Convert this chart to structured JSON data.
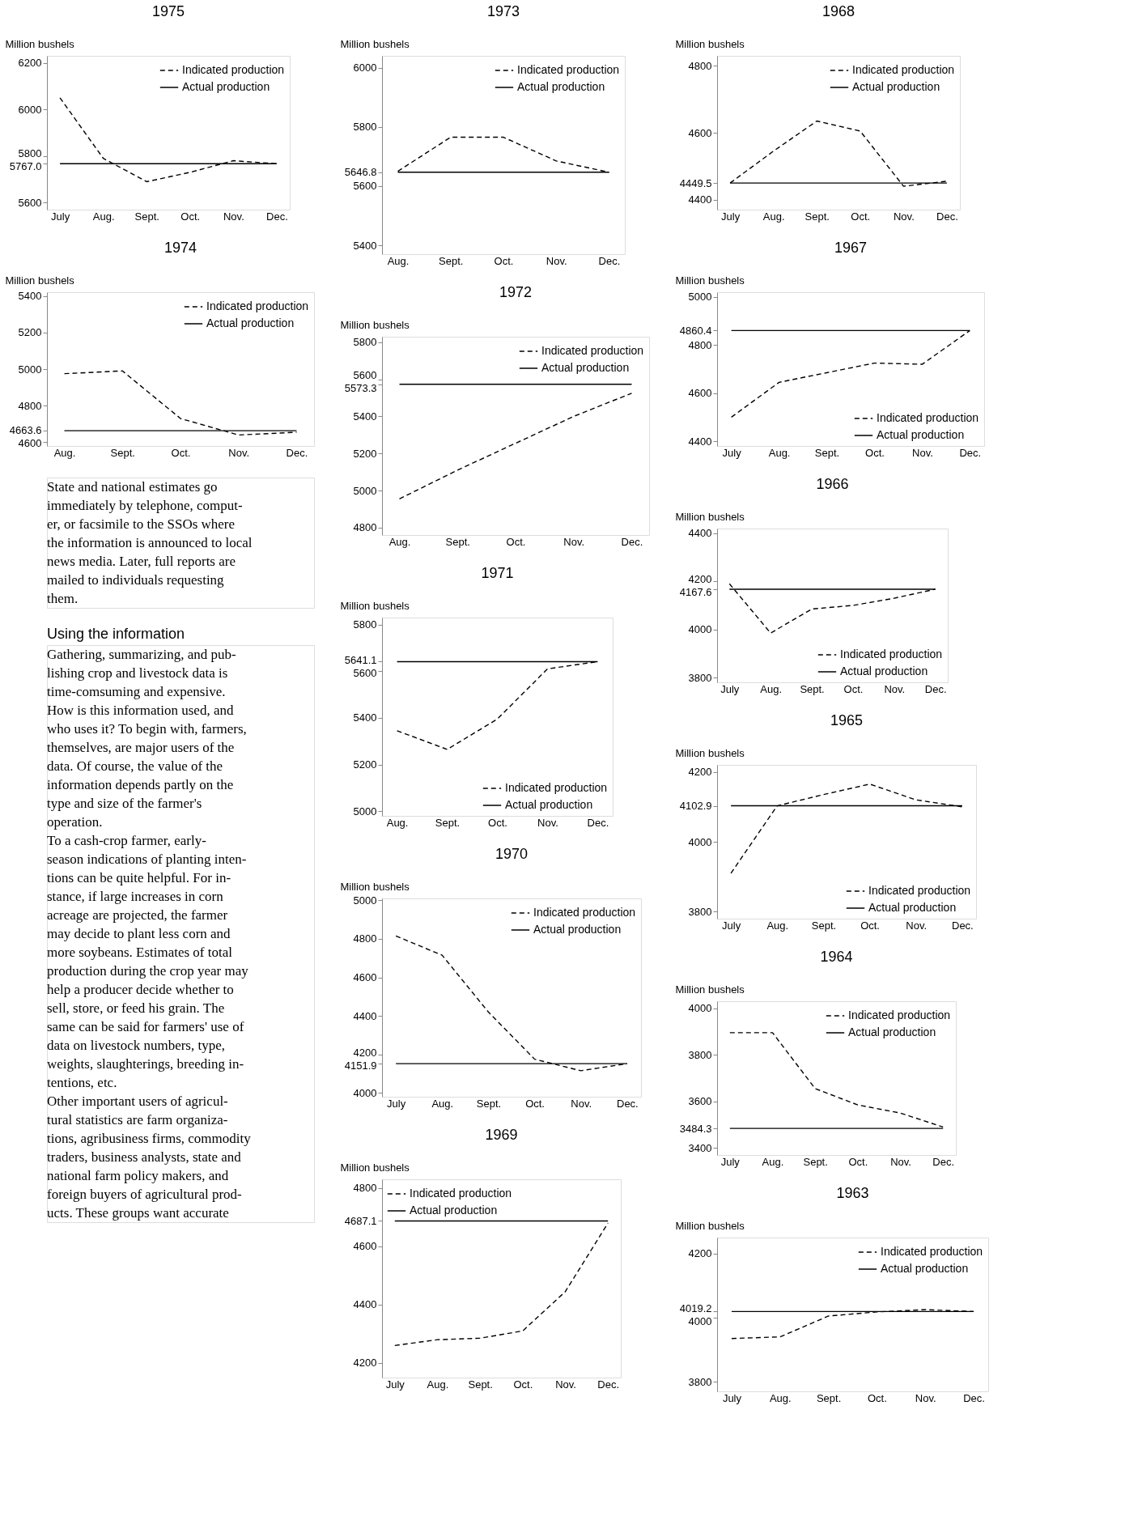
{
  "chart_data": [
    {
      "type": "line",
      "title": "1975",
      "ylabel": "Million bushels",
      "categories": [
        "July",
        "Aug.",
        "Sept.",
        "Oct.",
        "Nov.",
        "Dec."
      ],
      "ylim": [
        5570,
        6230
      ],
      "yticks": [
        6200,
        6000,
        5800,
        {
          "value": 5767,
          "label": "5767.0"
        },
        5600
      ],
      "legend": "top right",
      "series": [
        {
          "name": "Indicated production",
          "color": "#000000",
          "line_style": "dashed",
          "values": [
            6050,
            5790,
            5690,
            5730,
            5780,
            5767
          ]
        },
        {
          "name": "Actual production",
          "color": "#000000",
          "line_style": "solid",
          "values": [
            5767,
            5767,
            5767,
            5767,
            5767,
            5767
          ]
        }
      ]
    },
    {
      "type": "line",
      "title": "1974",
      "ylabel": "Million bushels",
      "categories": [
        "Aug.",
        "Sept.",
        "Oct.",
        "Nov.",
        "Dec."
      ],
      "ylim": [
        4580,
        5420
      ],
      "yticks": [
        5400,
        5200,
        5000,
        4800,
        4663.6,
        4600
      ],
      "legend": "top right",
      "series": [
        {
          "name": "Indicated production",
          "color": "#000000",
          "line_style": "dashed",
          "values": [
            4975,
            4990,
            4730,
            4640,
            4655
          ]
        },
        {
          "name": "Actual production",
          "color": "#000000",
          "line_style": "solid",
          "values": [
            4663.6,
            4663.6,
            4663.6,
            4663.6,
            4663.6
          ]
        }
      ]
    },
    {
      "type": "other",
      "annotations": [
        "State and national estimates go",
        "immediately by telephone, comput-",
        "er, or facsimile to the SSOs where",
        "the information is announced to local",
        "news media. Later, full reports are",
        "mailed to individuals requesting",
        "them."
      ]
    },
    {
      "type": "other",
      "title": "Using the information",
      "annotations": [
        "Gathering, summarizing, and pub-",
        "lishing crop and livestock data is",
        "time-comsuming and expensive.",
        "How is this information used, and",
        "who uses it? To begin with, farmers,",
        "themselves, are major users of the",
        "data. Of course, the value of the",
        "information depends partly on the",
        "type and size of the farmer's",
        "operation.",
        "To a cash-crop farmer, early-",
        "season indications of planting inten-",
        "tions can be quite helpful. For in-",
        "stance, if large increases in corn",
        "acreage are projected, the farmer",
        "may decide to plant less corn and",
        "more soybeans. Estimates of total",
        "production during the crop year may",
        "help a producer decide whether to",
        "sell, store, or feed his grain. The",
        "same can be said for farmers' use of",
        "data on livestock numbers, type,",
        "weights, slaughterings, breeding in-",
        "tentions, etc.",
        "Other important users of agricul-",
        "tural statistics are farm organiza-",
        "tions, agribusiness firms, commodity",
        "traders, business analysts, state and",
        "national farm policy makers, and",
        "foreign buyers of agricultural prod-",
        "ucts. These groups want accurate"
      ]
    },
    {
      "type": "line",
      "title": "1973",
      "ylabel": "Million bushels",
      "categories": [
        "Aug.",
        "Sept.",
        "Oct.",
        "Nov.",
        "Dec."
      ],
      "ylim": [
        5370,
        6040
      ],
      "yticks": [
        6000,
        5800,
        5646.8,
        5600,
        5400
      ],
      "legend": "top right",
      "series": [
        {
          "name": "Indicated production",
          "color": "#000000",
          "line_style": "dashed",
          "values": [
            5650,
            5765,
            5765,
            5685,
            5646.8
          ]
        },
        {
          "name": "Actual production",
          "color": "#000000",
          "line_style": "solid",
          "values": [
            5646.8,
            5646.8,
            5646.8,
            5646.8,
            5646.8
          ]
        }
      ]
    },
    {
      "type": "line",
      "title": "1972",
      "ylabel": "Million bushels",
      "categories": [
        "Aug.",
        "Sept.",
        "Oct.",
        "Nov.",
        "Dec."
      ],
      "ylim": [
        4760,
        5830
      ],
      "yticks": [
        5800,
        5600,
        5573.3,
        5400,
        5200,
        5000,
        4800
      ],
      "legend": "top right",
      "series": [
        {
          "name": "Indicated production",
          "color": "#000000",
          "line_style": "dashed",
          "values": [
            4955,
            5110,
            5255,
            5400,
            5525
          ]
        },
        {
          "name": "Actual production",
          "color": "#000000",
          "line_style": "solid",
          "values": [
            5573.3,
            5573.3,
            5573.3,
            5573.3,
            5573.3
          ]
        }
      ]
    },
    {
      "type": "line",
      "title": "1971",
      "ylabel": "Million bushels",
      "categories": [
        "Aug.",
        "Sept.",
        "Oct.",
        "Nov.",
        "Dec."
      ],
      "ylim": [
        4980,
        5830
      ],
      "yticks": [
        5800,
        5641.1,
        5600,
        5400,
        5200,
        5000
      ],
      "legend": "bottom right",
      "series": [
        {
          "name": "Indicated production",
          "color": "#000000",
          "line_style": "dashed",
          "values": [
            5345,
            5265,
            5395,
            5610,
            5641.1
          ]
        },
        {
          "name": "Actual production",
          "color": "#000000",
          "line_style": "solid",
          "values": [
            5641.1,
            5641.1,
            5641.1,
            5641.1,
            5641.1
          ]
        }
      ]
    },
    {
      "type": "line",
      "title": "1970",
      "ylabel": "Million bushels",
      "categories": [
        "July",
        "Aug.",
        "Sept.",
        "Oct.",
        "Nov.",
        "Dec."
      ],
      "ylim": [
        3980,
        5010
      ],
      "yticks": [
        5000,
        4800,
        4600,
        4400,
        4200,
        4151.9,
        4000
      ],
      "legend": "top right",
      "series": [
        {
          "name": "Indicated production",
          "color": "#000000",
          "line_style": "dashed",
          "values": [
            4815,
            4715,
            4420,
            4175,
            4115,
            4151.9
          ]
        },
        {
          "name": "Actual production",
          "color": "#000000",
          "line_style": "solid",
          "values": [
            4151.9,
            4151.9,
            4151.9,
            4151.9,
            4151.9,
            4151.9
          ]
        }
      ]
    },
    {
      "type": "line",
      "title": "1969",
      "ylabel": "Million bushels",
      "categories": [
        "July",
        "Aug.",
        "Sept.",
        "Oct.",
        "Nov.",
        "Dec."
      ],
      "ylim": [
        4150,
        4830
      ],
      "yticks": [
        4800,
        4687.1,
        4600,
        4400,
        4200
      ],
      "legend": "top left",
      "series": [
        {
          "name": "Indicated production",
          "color": "#000000",
          "line_style": "dashed",
          "values": [
            4260,
            4280,
            4285,
            4310,
            4445,
            4680
          ]
        },
        {
          "name": "Actual production",
          "color": "#000000",
          "line_style": "solid",
          "values": [
            4687.1,
            4687.1,
            4687.1,
            4687.1,
            4687.1,
            4687.1
          ]
        }
      ]
    },
    {
      "type": "line",
      "title": "1968",
      "ylabel": "Million bushels",
      "categories": [
        "July",
        "Aug.",
        "Sept.",
        "Oct.",
        "Nov.",
        "Dec."
      ],
      "ylim": [
        4370,
        4830
      ],
      "yticks": [
        4800,
        4600,
        4449.5,
        4400
      ],
      "legend": "top right",
      "series": [
        {
          "name": "Indicated production",
          "color": "#000000",
          "line_style": "dashed",
          "values": [
            4449.5,
            4545,
            4635,
            4605,
            4440,
            4455
          ]
        },
        {
          "name": "Actual production",
          "color": "#000000",
          "line_style": "solid",
          "values": [
            4449.5,
            4449.5,
            4449.5,
            4449.5,
            4449.5,
            4449.5
          ]
        }
      ]
    },
    {
      "type": "line",
      "title": "1967",
      "ylabel": "Million bushels",
      "categories": [
        "July",
        "Aug.",
        "Sept.",
        "Oct.",
        "Nov.",
        "Dec."
      ],
      "ylim": [
        4380,
        5020
      ],
      "yticks": [
        5000,
        4860.4,
        4800,
        4600,
        4400
      ],
      "legend": "bottom right",
      "series": [
        {
          "name": "Indicated production",
          "color": "#000000",
          "line_style": "dashed",
          "values": [
            4500,
            4645,
            4685,
            4725,
            4720,
            4860.4
          ]
        },
        {
          "name": "Actual production",
          "color": "#000000",
          "line_style": "solid",
          "values": [
            4860.4,
            4860.4,
            4860.4,
            4860.4,
            4860.4,
            4860.4
          ]
        }
      ]
    },
    {
      "type": "line",
      "title": "1966",
      "ylabel": "Million bushels",
      "categories": [
        "July",
        "Aug.",
        "Sept.",
        "Oct.",
        "Nov.",
        "Dec."
      ],
      "ylim": [
        3780,
        4420
      ],
      "yticks": [
        4400,
        4200,
        4167.6,
        4000,
        3800
      ],
      "legend": "bottom right",
      "series": [
        {
          "name": "Indicated production",
          "color": "#000000",
          "line_style": "dashed",
          "values": [
            4190,
            3985,
            4085,
            4100,
            4130,
            4167.6
          ]
        },
        {
          "name": "Actual production",
          "color": "#000000",
          "line_style": "solid",
          "values": [
            4167.6,
            4167.6,
            4167.6,
            4167.6,
            4167.6,
            4167.6
          ]
        }
      ]
    },
    {
      "type": "line",
      "title": "1965",
      "ylabel": "Million bushels",
      "categories": [
        "July",
        "Aug.",
        "Sept.",
        "Oct.",
        "Nov.",
        "Dec."
      ],
      "ylim": [
        3780,
        4220
      ],
      "yticks": [
        4200,
        4102.9,
        4000,
        3800
      ],
      "legend": "bottom right",
      "series": [
        {
          "name": "Indicated production",
          "color": "#000000",
          "line_style": "dashed",
          "values": [
            3910,
            4102.9,
            4135,
            4165,
            4120,
            4100
          ]
        },
        {
          "name": "Actual production",
          "color": "#000000",
          "line_style": "solid",
          "values": [
            4102.9,
            4102.9,
            4102.9,
            4102.9,
            4102.9,
            4102.9
          ]
        }
      ]
    },
    {
      "type": "line",
      "title": "1964",
      "ylabel": "Million bushels",
      "categories": [
        "July",
        "Aug.",
        "Sept.",
        "Oct.",
        "Nov.",
        "Dec."
      ],
      "ylim": [
        3370,
        4030
      ],
      "yticks": [
        4000,
        3800,
        3600,
        3484.3,
        3400
      ],
      "legend": "top right",
      "series": [
        {
          "name": "Indicated production",
          "color": "#000000",
          "line_style": "dashed",
          "values": [
            3895,
            3895,
            3655,
            3585,
            3550,
            3490
          ]
        },
        {
          "name": "Actual production",
          "color": "#000000",
          "line_style": "solid",
          "values": [
            3484.3,
            3484.3,
            3484.3,
            3484.3,
            3484.3,
            3484.3
          ]
        }
      ]
    },
    {
      "type": "line",
      "title": "1963",
      "ylabel": "Million bushels",
      "categories": [
        "July",
        "Aug.",
        "Sept.",
        "Oct.",
        "Nov.",
        "Dec."
      ],
      "ylim": [
        3770,
        4250
      ],
      "yticks": [
        4200,
        4019.2,
        4000,
        3800
      ],
      "legend": "top right",
      "series": [
        {
          "name": "Indicated production",
          "color": "#000000",
          "line_style": "dashed",
          "values": [
            3935,
            3940,
            4005,
            4018,
            4025,
            4019.2
          ]
        },
        {
          "name": "Actual production",
          "color": "#000000",
          "line_style": "solid",
          "values": [
            4019.2,
            4019.2,
            4019.2,
            4019.2,
            4019.2,
            4019.2
          ]
        }
      ]
    }
  ]
}
